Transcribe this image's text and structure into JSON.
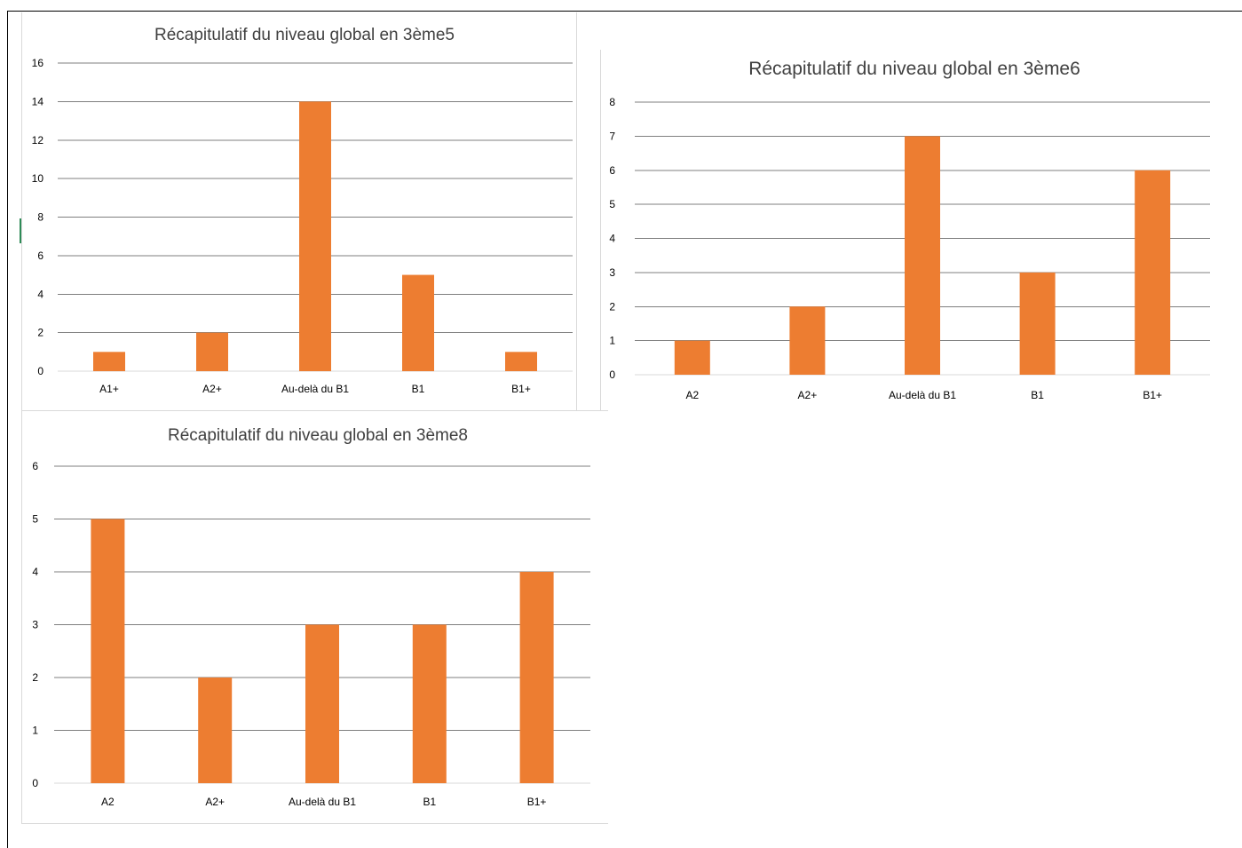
{
  "chart_data": [
    {
      "type": "bar",
      "title": "Récapitulatif du niveau global en 3ème5",
      "categories": [
        "A1+",
        "A2+",
        "Au-delà du B1",
        "B1",
        "B1+"
      ],
      "values": [
        1,
        2,
        14,
        5,
        1
      ],
      "ylim": [
        0,
        16
      ],
      "yticks": [
        0,
        2,
        4,
        6,
        8,
        10,
        12,
        14,
        16
      ],
      "grid": true,
      "legend": "none",
      "bar_color": "#ED7D31"
    },
    {
      "type": "bar",
      "title": "Récapitulatif du niveau global en 3ème6",
      "categories": [
        "A2",
        "A2+",
        "Au-delà du B1",
        "B1",
        "B1+"
      ],
      "values": [
        1,
        2,
        7,
        3,
        6
      ],
      "ylim": [
        0,
        8
      ],
      "yticks": [
        0,
        1,
        2,
        3,
        4,
        5,
        6,
        7,
        8
      ],
      "grid": true,
      "legend": "none",
      "bar_color": "#ED7D31"
    },
    {
      "type": "bar",
      "title": "Récapitulatif du niveau global en 3ème8",
      "categories": [
        "A2",
        "A2+",
        "Au-delà du B1",
        "B1",
        "B1+"
      ],
      "values": [
        5,
        2,
        3,
        3,
        4
      ],
      "ylim": [
        0,
        6
      ],
      "yticks": [
        0,
        1,
        2,
        3,
        4,
        5,
        6
      ],
      "grid": true,
      "legend": "none",
      "bar_color": "#ED7D31"
    }
  ]
}
